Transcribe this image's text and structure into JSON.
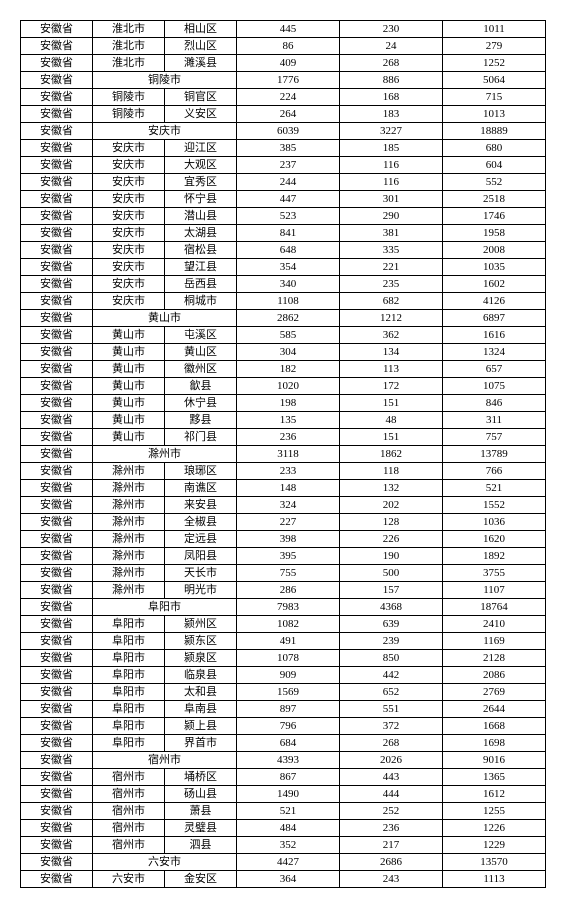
{
  "rows": [
    {
      "span": false,
      "c": [
        "安徽省",
        "淮北市",
        "相山区",
        "445",
        "230",
        "1011"
      ]
    },
    {
      "span": false,
      "c": [
        "安徽省",
        "淮北市",
        "烈山区",
        "86",
        "24",
        "279"
      ]
    },
    {
      "span": false,
      "c": [
        "安徽省",
        "淮北市",
        "濉溪县",
        "409",
        "268",
        "1252"
      ]
    },
    {
      "span": true,
      "c": [
        "安徽省",
        "铜陵市",
        "",
        "1776",
        "886",
        "5064"
      ]
    },
    {
      "span": false,
      "c": [
        "安徽省",
        "铜陵市",
        "铜官区",
        "224",
        "168",
        "715"
      ]
    },
    {
      "span": false,
      "c": [
        "安徽省",
        "铜陵市",
        "义安区",
        "264",
        "183",
        "1013"
      ]
    },
    {
      "span": true,
      "c": [
        "安徽省",
        "安庆市",
        "",
        "6039",
        "3227",
        "18889"
      ]
    },
    {
      "span": false,
      "c": [
        "安徽省",
        "安庆市",
        "迎江区",
        "385",
        "185",
        "680"
      ]
    },
    {
      "span": false,
      "c": [
        "安徽省",
        "安庆市",
        "大观区",
        "237",
        "116",
        "604"
      ]
    },
    {
      "span": false,
      "c": [
        "安徽省",
        "安庆市",
        "宜秀区",
        "244",
        "116",
        "552"
      ]
    },
    {
      "span": false,
      "c": [
        "安徽省",
        "安庆市",
        "怀宁县",
        "447",
        "301",
        "2518"
      ]
    },
    {
      "span": false,
      "c": [
        "安徽省",
        "安庆市",
        "潜山县",
        "523",
        "290",
        "1746"
      ]
    },
    {
      "span": false,
      "c": [
        "安徽省",
        "安庆市",
        "太湖县",
        "841",
        "381",
        "1958"
      ]
    },
    {
      "span": false,
      "c": [
        "安徽省",
        "安庆市",
        "宿松县",
        "648",
        "335",
        "2008"
      ]
    },
    {
      "span": false,
      "c": [
        "安徽省",
        "安庆市",
        "望江县",
        "354",
        "221",
        "1035"
      ]
    },
    {
      "span": false,
      "c": [
        "安徽省",
        "安庆市",
        "岳西县",
        "340",
        "235",
        "1602"
      ]
    },
    {
      "span": false,
      "c": [
        "安徽省",
        "安庆市",
        "桐城市",
        "1108",
        "682",
        "4126"
      ]
    },
    {
      "span": true,
      "c": [
        "安徽省",
        "黄山市",
        "",
        "2862",
        "1212",
        "6897"
      ]
    },
    {
      "span": false,
      "c": [
        "安徽省",
        "黄山市",
        "屯溪区",
        "585",
        "362",
        "1616"
      ]
    },
    {
      "span": false,
      "c": [
        "安徽省",
        "黄山市",
        "黄山区",
        "304",
        "134",
        "1324"
      ]
    },
    {
      "span": false,
      "c": [
        "安徽省",
        "黄山市",
        "徽州区",
        "182",
        "113",
        "657"
      ]
    },
    {
      "span": false,
      "c": [
        "安徽省",
        "黄山市",
        "歙县",
        "1020",
        "172",
        "1075"
      ]
    },
    {
      "span": false,
      "c": [
        "安徽省",
        "黄山市",
        "休宁县",
        "198",
        "151",
        "846"
      ]
    },
    {
      "span": false,
      "c": [
        "安徽省",
        "黄山市",
        "黟县",
        "135",
        "48",
        "311"
      ]
    },
    {
      "span": false,
      "c": [
        "安徽省",
        "黄山市",
        "祁门县",
        "236",
        "151",
        "757"
      ]
    },
    {
      "span": true,
      "c": [
        "安徽省",
        "滁州市",
        "",
        "3118",
        "1862",
        "13789"
      ]
    },
    {
      "span": false,
      "c": [
        "安徽省",
        "滁州市",
        "琅琊区",
        "233",
        "118",
        "766"
      ]
    },
    {
      "span": false,
      "c": [
        "安徽省",
        "滁州市",
        "南谯区",
        "148",
        "132",
        "521"
      ]
    },
    {
      "span": false,
      "c": [
        "安徽省",
        "滁州市",
        "来安县",
        "324",
        "202",
        "1552"
      ]
    },
    {
      "span": false,
      "c": [
        "安徽省",
        "滁州市",
        "全椒县",
        "227",
        "128",
        "1036"
      ]
    },
    {
      "span": false,
      "c": [
        "安徽省",
        "滁州市",
        "定远县",
        "398",
        "226",
        "1620"
      ]
    },
    {
      "span": false,
      "c": [
        "安徽省",
        "滁州市",
        "凤阳县",
        "395",
        "190",
        "1892"
      ]
    },
    {
      "span": false,
      "c": [
        "安徽省",
        "滁州市",
        "天长市",
        "755",
        "500",
        "3755"
      ]
    },
    {
      "span": false,
      "c": [
        "安徽省",
        "滁州市",
        "明光市",
        "286",
        "157",
        "1107"
      ]
    },
    {
      "span": true,
      "c": [
        "安徽省",
        "阜阳市",
        "",
        "7983",
        "4368",
        "18764"
      ]
    },
    {
      "span": false,
      "c": [
        "安徽省",
        "阜阳市",
        "颍州区",
        "1082",
        "639",
        "2410"
      ]
    },
    {
      "span": false,
      "c": [
        "安徽省",
        "阜阳市",
        "颍东区",
        "491",
        "239",
        "1169"
      ]
    },
    {
      "span": false,
      "c": [
        "安徽省",
        "阜阳市",
        "颍泉区",
        "1078",
        "850",
        "2128"
      ]
    },
    {
      "span": false,
      "c": [
        "安徽省",
        "阜阳市",
        "临泉县",
        "909",
        "442",
        "2086"
      ]
    },
    {
      "span": false,
      "c": [
        "安徽省",
        "阜阳市",
        "太和县",
        "1569",
        "652",
        "2769"
      ]
    },
    {
      "span": false,
      "c": [
        "安徽省",
        "阜阳市",
        "阜南县",
        "897",
        "551",
        "2644"
      ]
    },
    {
      "span": false,
      "c": [
        "安徽省",
        "阜阳市",
        "颍上县",
        "796",
        "372",
        "1668"
      ]
    },
    {
      "span": false,
      "c": [
        "安徽省",
        "阜阳市",
        "界首市",
        "684",
        "268",
        "1698"
      ]
    },
    {
      "span": true,
      "c": [
        "安徽省",
        "宿州市",
        "",
        "4393",
        "2026",
        "9016"
      ]
    },
    {
      "span": false,
      "c": [
        "安徽省",
        "宿州市",
        "埇桥区",
        "867",
        "443",
        "1365"
      ]
    },
    {
      "span": false,
      "c": [
        "安徽省",
        "宿州市",
        "砀山县",
        "1490",
        "444",
        "1612"
      ]
    },
    {
      "span": false,
      "c": [
        "安徽省",
        "宿州市",
        "萧县",
        "521",
        "252",
        "1255"
      ]
    },
    {
      "span": false,
      "c": [
        "安徽省",
        "宿州市",
        "灵璧县",
        "484",
        "236",
        "1226"
      ]
    },
    {
      "span": false,
      "c": [
        "安徽省",
        "宿州市",
        "泗县",
        "352",
        "217",
        "1229"
      ]
    },
    {
      "span": true,
      "c": [
        "安徽省",
        "六安市",
        "",
        "4427",
        "2686",
        "13570"
      ]
    },
    {
      "span": false,
      "c": [
        "安徽省",
        "六安市",
        "金安区",
        "364",
        "243",
        "1113"
      ]
    }
  ]
}
